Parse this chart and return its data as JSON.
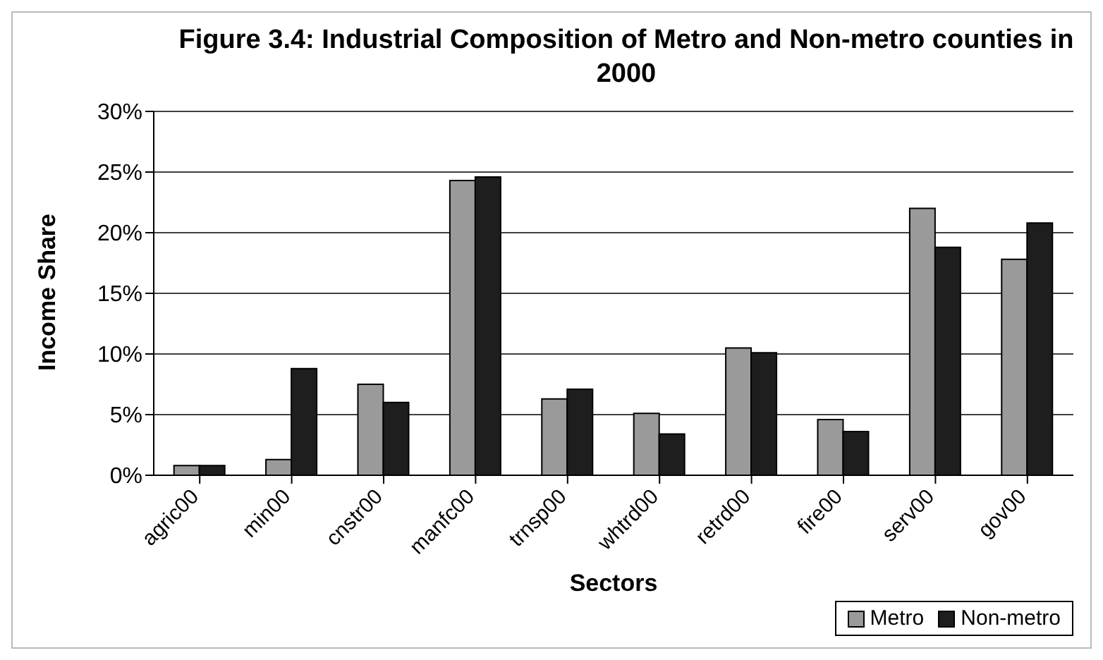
{
  "chart_data": {
    "type": "bar",
    "title": "Figure 3.4:  Industrial Composition of Metro and Non-metro counties in 2000",
    "xlabel": "Sectors",
    "ylabel": "Income Share",
    "categories": [
      "agric00",
      "min00",
      "cnstr00",
      "manfc00",
      "trnsp00",
      "whtrd00",
      "retrd00",
      "fire00",
      "serv00",
      "gov00"
    ],
    "series": [
      {
        "name": "Metro",
        "color": "#9a9a9a",
        "values": [
          0.8,
          1.3,
          7.5,
          24.3,
          6.3,
          5.1,
          10.5,
          4.6,
          22.0,
          17.8
        ]
      },
      {
        "name": "Non-metro",
        "color": "#1e1e1e",
        "values": [
          0.8,
          8.8,
          6.0,
          24.6,
          7.1,
          3.4,
          10.1,
          3.6,
          18.8,
          20.8
        ]
      }
    ],
    "ylim": [
      0,
      30
    ],
    "yticks": [
      {
        "value": 0,
        "label": "0%"
      },
      {
        "value": 5,
        "label": "5%"
      },
      {
        "value": 10,
        "label": "10%"
      },
      {
        "value": 15,
        "label": "15%"
      },
      {
        "value": 20,
        "label": "20%"
      },
      {
        "value": 25,
        "label": "25%"
      },
      {
        "value": 30,
        "label": "30%"
      }
    ],
    "grid": "y",
    "legend": "bottom right"
  }
}
